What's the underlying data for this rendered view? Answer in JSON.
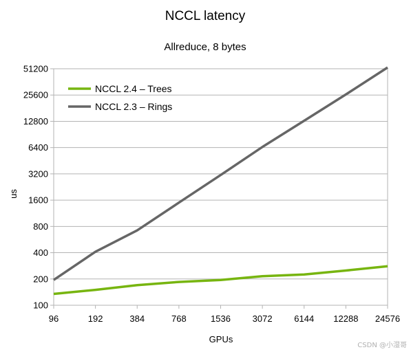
{
  "chart_data": {
    "type": "line",
    "title": "NCCL latency",
    "subtitle": "Allreduce, 8 bytes",
    "xlabel": "GPUs",
    "ylabel": "us",
    "categories": [
      "96",
      "192",
      "384",
      "768",
      "1536",
      "3072",
      "6144",
      "12288",
      "24576"
    ],
    "yscale": "log2",
    "ylim": [
      100,
      51200
    ],
    "yticks": [
      "100",
      "200",
      "400",
      "800",
      "1600",
      "3200",
      "6400",
      "12800",
      "25600",
      "51200"
    ],
    "grid": "horizontal",
    "legend_position": "top-left",
    "series": [
      {
        "name": "NCCL 2.4 – Trees",
        "color": "#77b510",
        "values": [
          135,
          150,
          170,
          185,
          195,
          215,
          225,
          250,
          280
        ]
      },
      {
        "name": "NCCL 2.3 – Rings",
        "color": "#666666",
        "values": [
          195,
          410,
          720,
          1500,
          3100,
          6500,
          13000,
          26000,
          53000
        ]
      }
    ]
  },
  "watermark": "CSDN @小湿哥"
}
